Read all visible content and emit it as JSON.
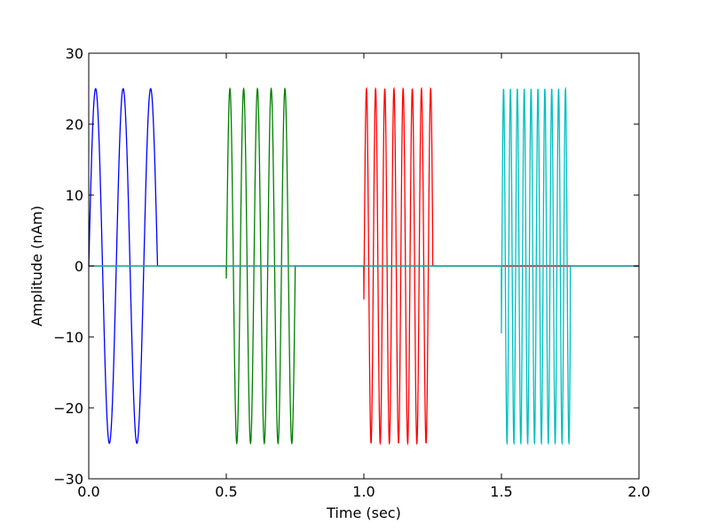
{
  "chart_data": {
    "type": "line",
    "title": "",
    "xlabel": "Time (sec)",
    "ylabel": "Amplitude (nAm)",
    "xlim": [
      0.0,
      2.0
    ],
    "ylim": [
      -30,
      30
    ],
    "xticks": [
      "0.0",
      "0.5",
      "1.0",
      "1.5",
      "2.0"
    ],
    "yticks": [
      "−30",
      "−20",
      "−10",
      "0",
      "10",
      "20",
      "30"
    ],
    "grid": false,
    "series": [
      {
        "color": "#0000ff",
        "amplitude": 25,
        "frequency_hz": 10,
        "start": 0.0,
        "end": 0.25,
        "phase_rad": 0.0
      },
      {
        "color": "#008000",
        "amplitude": 25,
        "frequency_hz": 20,
        "start": 0.5,
        "end": 0.75,
        "phase_rad": -0.07
      },
      {
        "color": "#ff0000",
        "amplitude": 25,
        "frequency_hz": 30,
        "start": 1.0,
        "end": 1.25,
        "phase_rad": -0.19
      },
      {
        "color": "#00bfbf",
        "amplitude": 25,
        "frequency_hz": 40,
        "start": 1.5,
        "end": 1.75,
        "phase_rad": -0.39
      }
    ],
    "baseline": 0
  }
}
